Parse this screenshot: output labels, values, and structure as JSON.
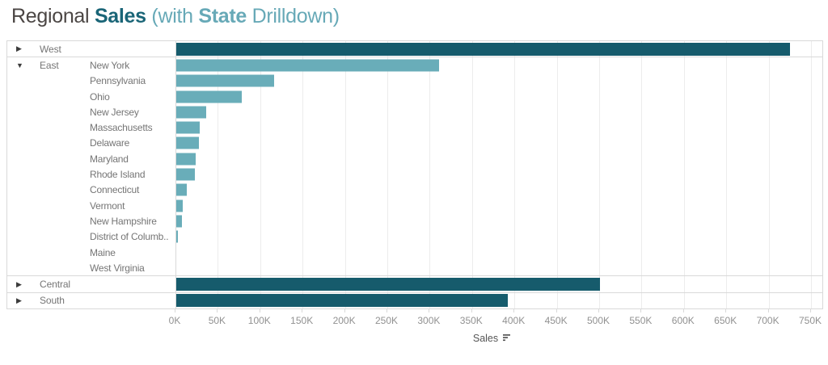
{
  "title": {
    "segments": [
      {
        "text": "Regional "
      },
      {
        "text": "Sales "
      },
      {
        "text": "(with "
      },
      {
        "text": "State "
      },
      {
        "text": "Drilldown)"
      }
    ]
  },
  "icons": {
    "collapsed": "▶",
    "expanded": "▼",
    "sort": "sort-descending"
  },
  "colors": {
    "title_primary": "#4b4644",
    "title_accent_dark": "#1a6577",
    "title_accent_light": "#67a9b7",
    "region_bar": "#165b6c",
    "state_bar": "#69adb9",
    "grid_line": "#ececec",
    "frame_border": "#d9d9d9",
    "header_text": "#757575",
    "tick_text": "#919191",
    "axis_title_text": "#555555",
    "expander": "#3c3c3c"
  },
  "chart_data": {
    "type": "bar",
    "orientation": "horizontal",
    "title": "Regional Sales (with State Drilldown)",
    "xlabel": "Sales",
    "ylabel": "",
    "x_max": 750000,
    "x_tick_interval": 50000,
    "x_ticks": [
      "0K",
      "50K",
      "100K",
      "150K",
      "200K",
      "250K",
      "300K",
      "350K",
      "400K",
      "450K",
      "500K",
      "550K",
      "600K",
      "650K",
      "700K",
      "750K"
    ],
    "grid": true,
    "legend": false,
    "rows": [
      {
        "region": "West",
        "state": null,
        "level": "region",
        "expander": "collapsed",
        "value": 725458,
        "separator_top": false
      },
      {
        "region": "East",
        "state": "New York",
        "level": "state",
        "expander": "expanded",
        "value": 310876,
        "separator_top": true
      },
      {
        "region": null,
        "state": "Pennsylvania",
        "level": "state",
        "expander": null,
        "value": 116512,
        "separator_top": false
      },
      {
        "region": null,
        "state": "Ohio",
        "level": "state",
        "expander": null,
        "value": 78258,
        "separator_top": false
      },
      {
        "region": null,
        "state": "New Jersey",
        "level": "state",
        "expander": null,
        "value": 35764,
        "separator_top": false
      },
      {
        "region": null,
        "state": "Massachusetts",
        "level": "state",
        "expander": null,
        "value": 28634,
        "separator_top": false
      },
      {
        "region": null,
        "state": "Delaware",
        "level": "state",
        "expander": null,
        "value": 27451,
        "separator_top": false
      },
      {
        "region": null,
        "state": "Maryland",
        "level": "state",
        "expander": null,
        "value": 23706,
        "separator_top": false
      },
      {
        "region": null,
        "state": "Rhode Island",
        "level": "state",
        "expander": null,
        "value": 22628,
        "separator_top": false
      },
      {
        "region": null,
        "state": "Connecticut",
        "level": "state",
        "expander": null,
        "value": 13384,
        "separator_top": false
      },
      {
        "region": null,
        "state": "Vermont",
        "level": "state",
        "expander": null,
        "value": 8929,
        "separator_top": false
      },
      {
        "region": null,
        "state": "New Hampshire",
        "level": "state",
        "expander": null,
        "value": 7293,
        "separator_top": false
      },
      {
        "region": null,
        "state": "District of Columb..",
        "level": "state",
        "expander": null,
        "value": 2865,
        "separator_top": false
      },
      {
        "region": null,
        "state": "Maine",
        "level": "state",
        "expander": null,
        "value": 1271,
        "separator_top": false
      },
      {
        "region": null,
        "state": "West Virginia",
        "level": "state",
        "expander": null,
        "value": 1210,
        "separator_top": false
      },
      {
        "region": "Central",
        "state": null,
        "level": "region",
        "expander": "collapsed",
        "value": 501240,
        "separator_top": true
      },
      {
        "region": "South",
        "state": null,
        "level": "region",
        "expander": "collapsed",
        "value": 391722,
        "separator_top": true
      }
    ]
  }
}
